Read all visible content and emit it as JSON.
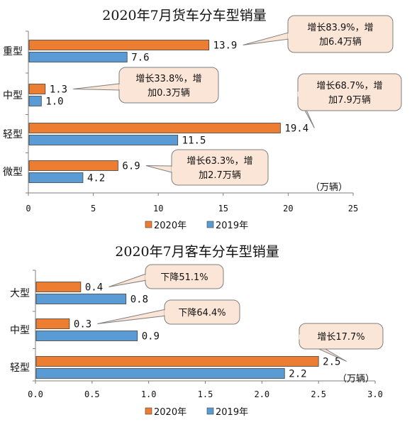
{
  "chart_data": [
    {
      "type": "bar",
      "orientation": "horizontal",
      "title": "2020年7月货车分车型销量",
      "unit_label": "（万辆）",
      "categories": [
        "重型",
        "中型",
        "轻型",
        "微型"
      ],
      "series": [
        {
          "name": "2020年",
          "color": "#ED7D31",
          "values": [
            13.9,
            1.3,
            19.4,
            6.9
          ],
          "value_labels": [
            "13.9",
            "1.3",
            "19.4",
            "6.9"
          ]
        },
        {
          "name": "2019年",
          "color": "#5B9BD5",
          "values": [
            7.6,
            1.0,
            11.5,
            4.2
          ],
          "value_labels": [
            "7.6",
            "1.0",
            "11.5",
            "4.2"
          ]
        }
      ],
      "xlim": [
        0,
        25
      ],
      "xticks": [
        0,
        5,
        10,
        15,
        20,
        25
      ],
      "xtick_labels": [
        "0",
        "5",
        "10",
        "15",
        "20",
        "25"
      ],
      "legend_position": "bottom",
      "annotations": [
        {
          "category": "重型",
          "lines": [
            "增长83.9%，增",
            "加6.4万辆"
          ]
        },
        {
          "category": "中型",
          "lines": [
            "增长33.8%，增",
            "加0.3万辆"
          ]
        },
        {
          "category": "轻型",
          "lines": [
            "增长68.7%，增",
            "加7.9万辆"
          ]
        },
        {
          "category": "微型",
          "lines": [
            "增长63.3%，增",
            "加2.7万辆"
          ]
        }
      ]
    },
    {
      "type": "bar",
      "orientation": "horizontal",
      "title": "2020年7月客车分车型销量",
      "unit_label": "（万辆）",
      "categories": [
        "大型",
        "中型",
        "轻型"
      ],
      "series": [
        {
          "name": "2020年",
          "color": "#ED7D31",
          "values": [
            0.4,
            0.3,
            2.5
          ],
          "value_labels": [
            "0.4",
            "0.3",
            "2.5"
          ]
        },
        {
          "name": "2019年",
          "color": "#5B9BD5",
          "values": [
            0.8,
            0.9,
            2.2
          ],
          "value_labels": [
            "0.8",
            "0.9",
            "2.2"
          ]
        }
      ],
      "xlim": [
        0,
        3
      ],
      "xticks": [
        0,
        0.5,
        1,
        1.5,
        2,
        2.5,
        3
      ],
      "xtick_labels": [
        "0.0",
        "0.5",
        "1.0",
        "1.5",
        "2.0",
        "2.5",
        "3.0"
      ],
      "legend_position": "bottom",
      "annotations": [
        {
          "category": "大型",
          "lines": [
            "下降51.1%"
          ]
        },
        {
          "category": "中型",
          "lines": [
            "下降64.4%"
          ]
        },
        {
          "category": "轻型",
          "lines": [
            "增长17.7%"
          ]
        }
      ]
    }
  ]
}
